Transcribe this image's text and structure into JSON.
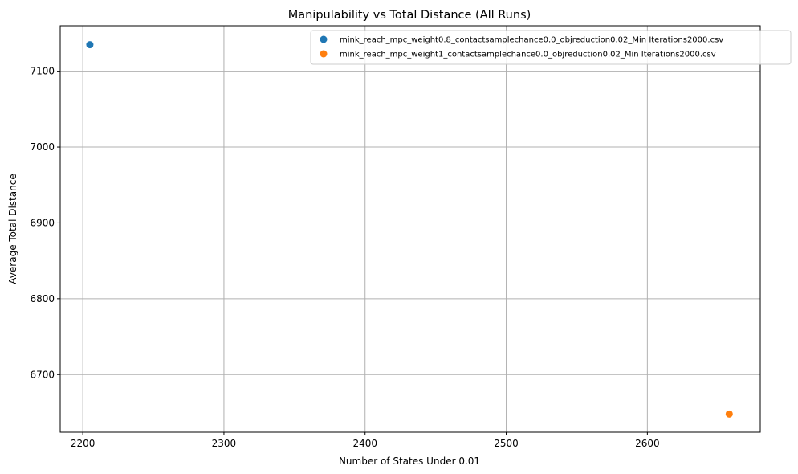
{
  "chart_data": {
    "type": "scatter",
    "title": "Manipulability vs Total Distance (All Runs)",
    "xlabel": "Number of States Under 0.01",
    "ylabel": "Average Total Distance",
    "xlim": [
      2184,
      2680
    ],
    "ylim": [
      6624,
      7160
    ],
    "xticks": [
      2200,
      2300,
      2400,
      2500,
      2600
    ],
    "yticks": [
      6700,
      6800,
      6900,
      7000,
      7100
    ],
    "grid": true,
    "legend_position": "top-right",
    "series": [
      {
        "name": "mink_reach_mpc_weight0.8_contactsamplechance0.0_objreduction0.02_Min Iterations2000.csv",
        "color": "#1f77b4",
        "points": [
          {
            "x": 2205,
            "y": 7135
          }
        ]
      },
      {
        "name": "mink_reach_mpc_weight1_contactsamplechance0.0_objreduction0.02_Min Iterations2000.csv",
        "color": "#ff7f0e",
        "points": [
          {
            "x": 2658,
            "y": 6648
          }
        ]
      }
    ]
  }
}
